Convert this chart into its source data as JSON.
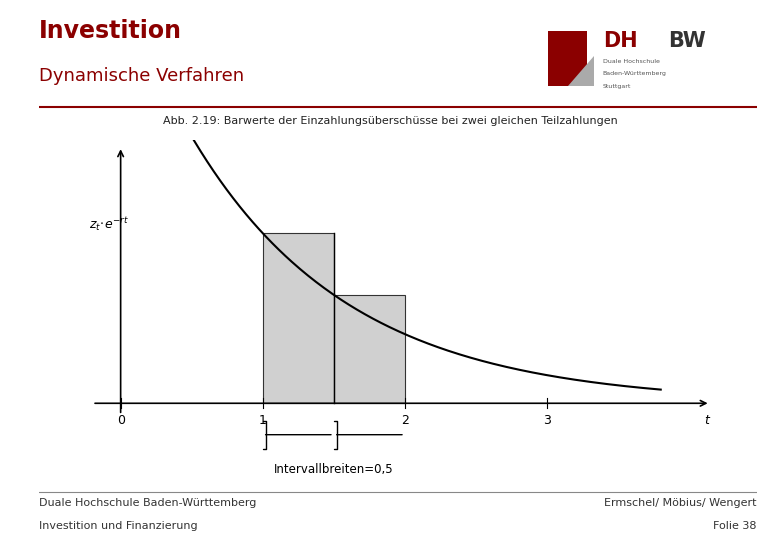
{
  "title1": "Investition",
  "title2": "Dynamische Verfahren",
  "footer_left1": "Duale Hochschule Baden-Württemberg",
  "footer_left2": "Investition und Finanzierung",
  "footer_right1": "Ermschel/ Möbius/ Wengert",
  "footer_right2": "Folie 38",
  "fig_caption": "Abb. 2.19: Barwerte der Einzahlungsüberschüsse bei zwei gleichen Teilzahlungen",
  "interval_label": "Intervallbreiten=0,5",
  "background_color": "#ffffff",
  "title1_color": "#8B0000",
  "title2_color": "#8B0000",
  "separator_color": "#8B0000",
  "footer_color": "#333333",
  "bar_color": "#d0d0d0",
  "bar_edgecolor": "#333333",
  "curve_color": "#000000",
  "axis_color": "#000000",
  "x_ticks": [
    0,
    1,
    2,
    3
  ],
  "x_tick_labels": [
    "0",
    "1",
    "2",
    "3"
  ],
  "xlim": [
    -0.3,
    4.2
  ],
  "ylim": [
    -0.15,
    2.2
  ],
  "curve_A": 3.5,
  "curve_r": 0.9
}
